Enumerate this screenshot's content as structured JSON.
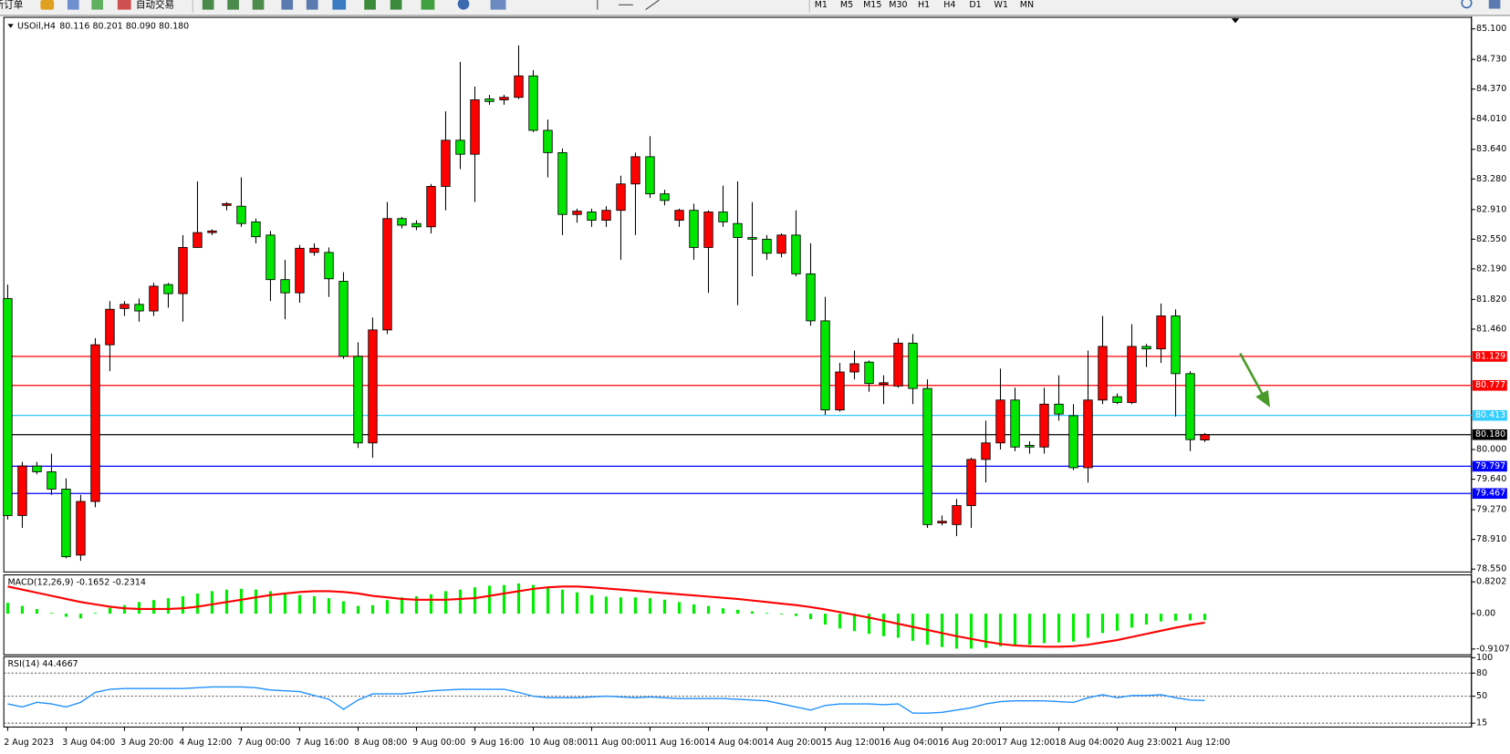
{
  "toolbar": {
    "buttons": [
      "新订单",
      "自动交易"
    ],
    "timeframes": [
      "M1",
      "M5",
      "M15",
      "M30",
      "H1",
      "H4",
      "D1",
      "W1",
      "MN"
    ]
  },
  "chart_data": [
    {
      "type": "candlestick",
      "title": "USOil,H4",
      "info": "80.116 80.201 80.090 80.180",
      "categories": [
        "2 Aug 2023",
        null,
        null,
        null,
        "3 Aug 04:00",
        null,
        null,
        null,
        "3 Aug 20:00",
        null,
        null,
        null,
        "4 Aug 12:00",
        null,
        null,
        null,
        "7 Aug 00:00",
        null,
        null,
        null,
        "7 Aug 16:00",
        null,
        null,
        null,
        "8 Aug 08:00",
        null,
        null,
        null,
        "9 Aug 00:00",
        null,
        null,
        null,
        "9 Aug 16:00",
        null,
        null,
        null,
        "10 Aug 08:00",
        null,
        null,
        null,
        "11 Aug 00:00",
        null,
        null,
        null,
        "11 Aug 16:00",
        null,
        null,
        null,
        "14 Aug 04:00",
        null,
        null,
        null,
        "14 Aug 20:00",
        null,
        null,
        null,
        "15 Aug 12:00",
        null,
        null,
        null,
        "16 Aug 04:00",
        null,
        null,
        null,
        "16 Aug 20:00",
        null,
        null,
        null,
        "17 Aug 12:00",
        null,
        null,
        null,
        "18 Aug 04:00",
        null,
        null,
        null,
        "20 Aug 23:00",
        null,
        null,
        null,
        "21 Aug 12:00",
        null,
        null
      ],
      "open": [
        81.83,
        79.2,
        79.8,
        79.73,
        79.52,
        78.72,
        79.37,
        81.27,
        81.71,
        81.76,
        81.68,
        82.0,
        81.89,
        82.45,
        82.63,
        82.96,
        82.95,
        82.76,
        82.6,
        82.06,
        81.9,
        82.39,
        82.39,
        82.04,
        81.13,
        80.08,
        81.45,
        82.8,
        82.74,
        82.7,
        83.19,
        83.75,
        83.58,
        84.25,
        84.24,
        84.27,
        84.53,
        83.87,
        83.6,
        82.85,
        82.88,
        82.78,
        82.9,
        83.22,
        83.55,
        83.1,
        82.78,
        82.9,
        82.45,
        82.88,
        82.74,
        82.57,
        82.55,
        82.38,
        82.6,
        82.13,
        81.56,
        80.48,
        80.94,
        81.06,
        80.79,
        80.77,
        81.29,
        80.74,
        79.11,
        79.09,
        79.32,
        79.88,
        80.08,
        80.6,
        80.05,
        80.03,
        80.55,
        80.41,
        79.78,
        80.6,
        80.64,
        80.57,
        81.25,
        81.22,
        81.62,
        80.92,
        80.116
      ],
      "high": [
        82.0,
        79.85,
        79.85,
        79.95,
        79.65,
        79.45,
        81.35,
        81.8,
        81.8,
        81.83,
        82.02,
        82.02,
        82.6,
        83.25,
        82.67,
        83.0,
        83.3,
        82.8,
        82.65,
        82.3,
        82.48,
        82.5,
        82.45,
        82.15,
        81.3,
        81.6,
        83.0,
        82.82,
        82.78,
        83.22,
        84.1,
        84.7,
        84.4,
        84.3,
        84.3,
        84.9,
        84.6,
        84.0,
        83.65,
        82.92,
        82.92,
        82.95,
        83.32,
        83.6,
        83.8,
        83.15,
        82.92,
        82.98,
        82.9,
        83.2,
        83.25,
        83.0,
        82.6,
        82.62,
        82.9,
        82.5,
        81.85,
        81.05,
        81.2,
        81.08,
        80.9,
        81.35,
        81.4,
        80.85,
        79.2,
        79.4,
        79.9,
        80.35,
        80.98,
        80.75,
        80.1,
        80.75,
        80.9,
        80.55,
        81.2,
        81.62,
        80.68,
        81.52,
        81.28,
        81.77,
        81.7,
        80.95,
        80.201
      ],
      "low": [
        79.15,
        79.05,
        79.7,
        79.45,
        78.68,
        78.65,
        79.3,
        80.95,
        81.62,
        81.55,
        81.62,
        81.72,
        81.55,
        82.45,
        82.6,
        82.9,
        82.7,
        82.5,
        81.8,
        81.58,
        81.78,
        82.35,
        81.85,
        81.1,
        80.02,
        79.9,
        81.4,
        82.68,
        82.66,
        82.62,
        82.9,
        83.4,
        83.0,
        84.18,
        84.18,
        84.25,
        83.85,
        83.3,
        82.6,
        82.75,
        82.7,
        82.7,
        82.3,
        82.6,
        83.05,
        82.96,
        82.7,
        82.3,
        81.9,
        82.7,
        81.75,
        82.1,
        82.3,
        82.33,
        82.1,
        81.5,
        80.42,
        80.46,
        80.85,
        80.7,
        80.55,
        80.75,
        80.55,
        79.05,
        79.08,
        78.95,
        79.05,
        79.6,
        80.0,
        79.98,
        79.95,
        79.95,
        80.35,
        79.75,
        79.6,
        80.55,
        80.55,
        80.55,
        81.0,
        81.05,
        80.4,
        79.98,
        80.09
      ],
      "close": [
        79.2,
        79.8,
        79.73,
        79.52,
        78.7,
        79.37,
        81.27,
        81.7,
        81.76,
        81.68,
        81.98,
        81.89,
        82.45,
        82.63,
        82.65,
        82.98,
        82.74,
        82.58,
        82.06,
        81.9,
        82.44,
        82.44,
        82.07,
        81.13,
        80.08,
        81.45,
        82.8,
        82.72,
        82.7,
        83.19,
        83.75,
        83.58,
        84.24,
        84.22,
        84.27,
        84.53,
        83.87,
        83.6,
        82.85,
        82.89,
        82.78,
        82.9,
        83.22,
        83.55,
        83.1,
        83.02,
        82.9,
        82.45,
        82.88,
        82.76,
        82.57,
        82.55,
        82.38,
        82.6,
        82.13,
        81.56,
        80.48,
        80.94,
        81.04,
        80.8,
        80.81,
        81.29,
        80.74,
        79.09,
        79.13,
        79.32,
        79.88,
        80.08,
        80.6,
        80.03,
        80.03,
        80.55,
        80.43,
        79.78,
        80.6,
        81.25,
        80.57,
        81.25,
        81.22,
        81.62,
        80.92,
        80.12,
        80.18
      ],
      "up_color": "#ff0000",
      "down_color": "#00e600",
      "ylim": [
        78.515,
        85.24
      ],
      "yticks": [
        {
          "value": 85.1,
          "label": "85.100"
        },
        {
          "value": 84.73,
          "label": "84.730"
        },
        {
          "value": 84.37,
          "label": "84.370"
        },
        {
          "value": 84.01,
          "label": "84.010"
        },
        {
          "value": 83.64,
          "label": "83.640"
        },
        {
          "value": 83.28,
          "label": "83.280"
        },
        {
          "value": 82.91,
          "label": "82.910"
        },
        {
          "value": 82.55,
          "label": "82.550"
        },
        {
          "value": 82.19,
          "label": "82.190"
        },
        {
          "value": 81.82,
          "label": "81.820"
        },
        {
          "value": 81.46,
          "label": "81.460"
        },
        {
          "value": 80.0,
          "label": "80.000"
        },
        {
          "value": 79.64,
          "label": "79.640"
        },
        {
          "value": 79.27,
          "label": "79.270"
        },
        {
          "value": 78.91,
          "label": "78.910"
        },
        {
          "value": 78.55,
          "label": "78.550"
        }
      ],
      "hlines": [
        {
          "value": 81.129,
          "color": "#ff0000"
        },
        {
          "value": 80.777,
          "color": "#ff0000"
        },
        {
          "value": 80.413,
          "color": "#33ccff"
        },
        {
          "value": 80.18,
          "label": "80.180",
          "color": "#000000"
        },
        {
          "value": 79.797,
          "color": "#0000ff"
        },
        {
          "value": 79.467,
          "color": "#0000ff"
        }
      ]
    },
    {
      "type": "macd",
      "title": "MACD(12,26,9) -0.1652 -0.2314",
      "values": [
        0.28,
        0.2,
        0.12,
        0.02,
        -0.08,
        -0.12,
        0.02,
        0.15,
        0.22,
        0.3,
        0.35,
        0.4,
        0.45,
        0.52,
        0.58,
        0.62,
        0.64,
        0.62,
        0.58,
        0.52,
        0.48,
        0.45,
        0.4,
        0.32,
        0.2,
        0.22,
        0.35,
        0.42,
        0.45,
        0.5,
        0.58,
        0.62,
        0.68,
        0.72,
        0.74,
        0.78,
        0.74,
        0.7,
        0.62,
        0.55,
        0.48,
        0.44,
        0.42,
        0.42,
        0.4,
        0.36,
        0.3,
        0.24,
        0.2,
        0.14,
        0.1,
        0.06,
        0.02,
        -0.02,
        -0.06,
        -0.14,
        -0.28,
        -0.38,
        -0.45,
        -0.52,
        -0.58,
        -0.62,
        -0.7,
        -0.8,
        -0.86,
        -0.9,
        -0.9,
        -0.88,
        -0.84,
        -0.82,
        -0.8,
        -0.76,
        -0.74,
        -0.72,
        -0.62,
        -0.5,
        -0.44,
        -0.36,
        -0.28,
        -0.2,
        -0.18,
        -0.17,
        -0.1652
      ],
      "color": "#00ee00",
      "signal": {
        "values": [
          0.7,
          0.62,
          0.54,
          0.46,
          0.38,
          0.3,
          0.24,
          0.18,
          0.14,
          0.12,
          0.12,
          0.12,
          0.14,
          0.18,
          0.24,
          0.3,
          0.36,
          0.42,
          0.48,
          0.52,
          0.56,
          0.58,
          0.58,
          0.56,
          0.52,
          0.46,
          0.42,
          0.38,
          0.36,
          0.36,
          0.36,
          0.38,
          0.4,
          0.46,
          0.52,
          0.58,
          0.64,
          0.68,
          0.7,
          0.7,
          0.68,
          0.65,
          0.62,
          0.59,
          0.56,
          0.53,
          0.5,
          0.47,
          0.44,
          0.41,
          0.38,
          0.34,
          0.3,
          0.26,
          0.22,
          0.17,
          0.11,
          0.04,
          -0.03,
          -0.1,
          -0.18,
          -0.26,
          -0.34,
          -0.42,
          -0.5,
          -0.58,
          -0.65,
          -0.72,
          -0.78,
          -0.82,
          -0.84,
          -0.85,
          -0.85,
          -0.84,
          -0.8,
          -0.74,
          -0.68,
          -0.6,
          -0.52,
          -0.44,
          -0.36,
          -0.29,
          -0.2314
        ],
        "color": "#ff0000"
      },
      "ylim": [
        -1.06,
        1.0
      ],
      "yticks": [
        0.8202,
        {
          "value": 0,
          "label": "0.00"
        },
        -0.9107
      ]
    },
    {
      "type": "line",
      "title": "RSI(14) 44.4667",
      "values": [
        40,
        36,
        42,
        40,
        36,
        42,
        55,
        59,
        60,
        60,
        60,
        60,
        60,
        61,
        62,
        62,
        62,
        61,
        58,
        57,
        56,
        51,
        46,
        33,
        45,
        53,
        53,
        53,
        55,
        57,
        58,
        59,
        59,
        59,
        59,
        55,
        50,
        48,
        48,
        48,
        49,
        50,
        49,
        48,
        49,
        48,
        47,
        47,
        47,
        47,
        46,
        45,
        44,
        40,
        36,
        32,
        38,
        40,
        40,
        40,
        39,
        40,
        28,
        28,
        29,
        32,
        35,
        40,
        43,
        44,
        44,
        44,
        43,
        42,
        48,
        52,
        48,
        51,
        51,
        52,
        48,
        45,
        44.4667
      ],
      "color": "#1e90ff",
      "ylim": [
        10,
        100
      ],
      "yticks": [
        100,
        80,
        50,
        15
      ],
      "levels": [
        80,
        50,
        15
      ]
    }
  ]
}
